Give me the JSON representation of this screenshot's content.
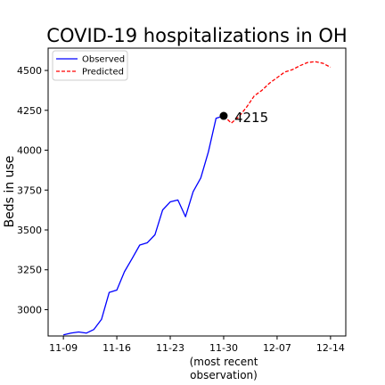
{
  "chart_data": {
    "type": "line",
    "title": "COVID-19 hospitalizations in OH",
    "ylabel": "Beds in use",
    "xlabel_lines": [
      "(most recent",
      "observation)"
    ],
    "x_ticks": [
      {
        "date": "2020-11-09",
        "label": "11-09"
      },
      {
        "date": "2020-11-16",
        "label": "11-16"
      },
      {
        "date": "2020-11-23",
        "label": "11-23"
      },
      {
        "date": "2020-11-30",
        "label": "11-30"
      },
      {
        "date": "2020-12-07",
        "label": "12-07"
      },
      {
        "date": "2020-12-14",
        "label": "12-14"
      }
    ],
    "xlim": [
      "2020-11-07",
      "2020-12-16"
    ],
    "y_ticks": [
      3000,
      3250,
      3500,
      3750,
      4000,
      4250,
      4500
    ],
    "ylim": [
      2835,
      4640
    ],
    "grid": false,
    "legend_position": "top-left",
    "series": [
      {
        "name": "Observed",
        "color": "#0000ff",
        "style": "solid",
        "points": [
          [
            "2020-11-09",
            2842
          ],
          [
            "2020-11-10",
            2853
          ],
          [
            "2020-11-11",
            2860
          ],
          [
            "2020-11-12",
            2853
          ],
          [
            "2020-11-13",
            2876
          ],
          [
            "2020-11-14",
            2940
          ],
          [
            "2020-11-15",
            3108
          ],
          [
            "2020-11-16",
            3123
          ],
          [
            "2020-11-17",
            3238
          ],
          [
            "2020-11-18",
            3320
          ],
          [
            "2020-11-19",
            3405
          ],
          [
            "2020-11-20",
            3420
          ],
          [
            "2020-11-21",
            3470
          ],
          [
            "2020-11-22",
            3625
          ],
          [
            "2020-11-23",
            3676
          ],
          [
            "2020-11-24",
            3688
          ],
          [
            "2020-11-25",
            3583
          ],
          [
            "2020-11-26",
            3740
          ],
          [
            "2020-11-27",
            3826
          ],
          [
            "2020-11-28",
            3990
          ],
          [
            "2020-11-29",
            4200
          ],
          [
            "2020-11-30",
            4215
          ]
        ]
      },
      {
        "name": "Predicted",
        "color": "#ff0000",
        "style": "dashed",
        "points": [
          [
            "2020-11-30",
            4215
          ],
          [
            "2020-12-01",
            4170
          ],
          [
            "2020-12-02",
            4210
          ],
          [
            "2020-12-03",
            4270
          ],
          [
            "2020-12-04",
            4340
          ],
          [
            "2020-12-05",
            4375
          ],
          [
            "2020-12-06",
            4420
          ],
          [
            "2020-12-07",
            4455
          ],
          [
            "2020-12-08",
            4490
          ],
          [
            "2020-12-09",
            4505
          ],
          [
            "2020-12-10",
            4530
          ],
          [
            "2020-12-11",
            4550
          ],
          [
            "2020-12-12",
            4555
          ],
          [
            "2020-12-13",
            4545
          ],
          [
            "2020-12-14",
            4520
          ]
        ]
      }
    ],
    "annotation": {
      "date": "2020-11-30",
      "value": 4215,
      "label": "4215"
    }
  }
}
